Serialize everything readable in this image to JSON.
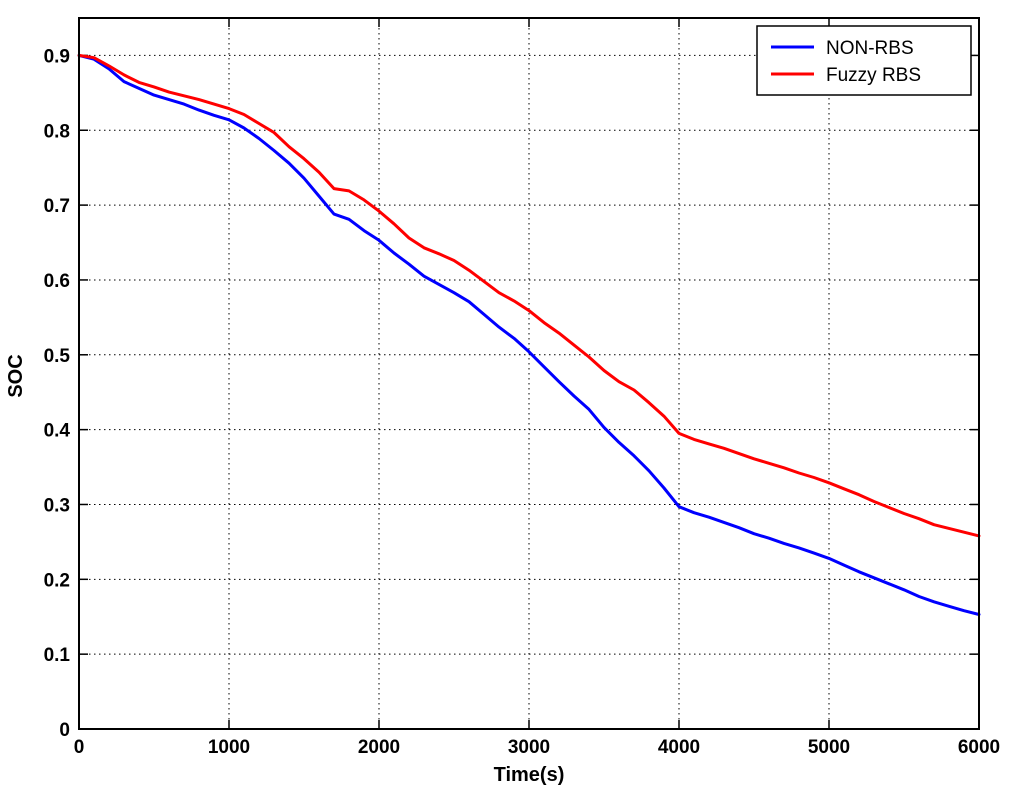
{
  "chart_data": {
    "type": "line",
    "title": "",
    "xlabel": "Time(s)",
    "ylabel": "SOC",
    "xlim": [
      0,
      6000
    ],
    "ylim": [
      0,
      0.95
    ],
    "xticks": [
      0,
      1000,
      2000,
      3000,
      4000,
      5000,
      6000
    ],
    "xtick_labels": [
      "0",
      "1000",
      "2000",
      "3000",
      "4000",
      "5000",
      "6000"
    ],
    "yticks": [
      0,
      0.1,
      0.2,
      0.3,
      0.4,
      0.5,
      0.6,
      0.7,
      0.8,
      0.9
    ],
    "ytick_labels": [
      "0",
      "0.1",
      "0.2",
      "0.3",
      "0.4",
      "0.5",
      "0.6",
      "0.7",
      "0.8",
      "0.9"
    ],
    "grid": true,
    "legend_position": "top-right",
    "series": [
      {
        "name": "NON-RBS",
        "color": "#0000ff",
        "x": [
          0,
          100,
          200,
          300,
          400,
          500,
          600,
          700,
          800,
          900,
          1000,
          1100,
          1200,
          1300,
          1400,
          1500,
          1600,
          1700,
          1800,
          1900,
          2000,
          2100,
          2200,
          2300,
          2400,
          2500,
          2600,
          2700,
          2800,
          2900,
          3000,
          3100,
          3200,
          3300,
          3400,
          3500,
          3600,
          3700,
          3800,
          3900,
          4000,
          4100,
          4200,
          4300,
          4400,
          4500,
          4600,
          4700,
          4800,
          4900,
          5000,
          5100,
          5200,
          5300,
          5400,
          5500,
          5600,
          5700,
          5800,
          5900,
          6000
        ],
        "y": [
          0.9,
          0.895,
          0.882,
          0.865,
          0.856,
          0.847,
          0.841,
          0.835,
          0.827,
          0.82,
          0.814,
          0.803,
          0.789,
          0.773,
          0.756,
          0.736,
          0.712,
          0.688,
          0.681,
          0.666,
          0.653,
          0.636,
          0.621,
          0.605,
          0.594,
          0.583,
          0.571,
          0.554,
          0.537,
          0.522,
          0.504,
          0.484,
          0.464,
          0.445,
          0.427,
          0.403,
          0.383,
          0.365,
          0.345,
          0.322,
          0.297,
          0.289,
          0.283,
          0.276,
          0.269,
          0.261,
          0.255,
          0.248,
          0.242,
          0.235,
          0.228,
          0.219,
          0.21,
          0.202,
          0.194,
          0.186,
          0.177,
          0.17,
          0.164,
          0.158,
          0.153
        ]
      },
      {
        "name": "Fuzzy RBS",
        "color": "#ff0000",
        "x": [
          0,
          100,
          200,
          300,
          400,
          500,
          600,
          700,
          800,
          900,
          1000,
          1100,
          1200,
          1300,
          1400,
          1500,
          1600,
          1700,
          1800,
          1900,
          2000,
          2100,
          2200,
          2300,
          2400,
          2500,
          2600,
          2700,
          2800,
          2900,
          3000,
          3100,
          3200,
          3300,
          3400,
          3500,
          3600,
          3700,
          3800,
          3900,
          4000,
          4100,
          4200,
          4300,
          4400,
          4500,
          4600,
          4700,
          4800,
          4900,
          5000,
          5100,
          5200,
          5300,
          5400,
          5500,
          5600,
          5700,
          5800,
          5900,
          6000
        ],
        "y": [
          0.9,
          0.897,
          0.886,
          0.874,
          0.864,
          0.858,
          0.851,
          0.846,
          0.841,
          0.835,
          0.829,
          0.821,
          0.809,
          0.797,
          0.778,
          0.762,
          0.744,
          0.722,
          0.719,
          0.707,
          0.692,
          0.675,
          0.656,
          0.643,
          0.635,
          0.626,
          0.613,
          0.598,
          0.583,
          0.572,
          0.559,
          0.543,
          0.529,
          0.513,
          0.497,
          0.479,
          0.464,
          0.453,
          0.436,
          0.418,
          0.395,
          0.387,
          0.381,
          0.375,
          0.368,
          0.361,
          0.355,
          0.349,
          0.342,
          0.336,
          0.329,
          0.321,
          0.313,
          0.304,
          0.296,
          0.288,
          0.281,
          0.273,
          0.268,
          0.263,
          0.258
        ]
      }
    ]
  }
}
